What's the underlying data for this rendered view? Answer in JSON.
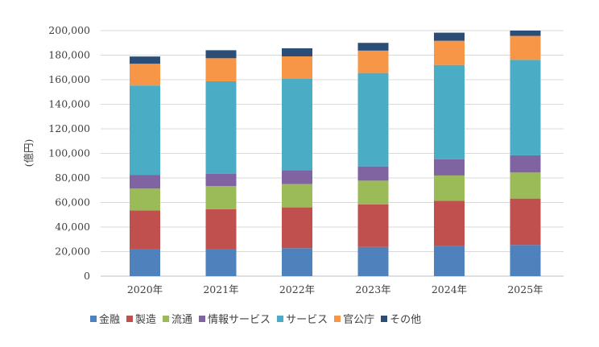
{
  "chart_data": {
    "type": "bar",
    "stacked": true,
    "title": "",
    "xlabel": "",
    "ylabel": "(億円)",
    "ylim": [
      0,
      200000
    ],
    "yticks": [
      "0",
      "20,000",
      "40,000",
      "60,000",
      "80,000",
      "100,000",
      "120,000",
      "140,000",
      "160,000",
      "180,000",
      "200,000"
    ],
    "grid": true,
    "legend_position": "bottom",
    "categories": [
      "2020年",
      "2021年",
      "2022年",
      "2023年",
      "2024年",
      "2025年"
    ],
    "series": [
      {
        "name": "金融",
        "color": "#4f81bd",
        "values": [
          22000,
          22300,
          22800,
          23800,
          24500,
          25400
        ]
      },
      {
        "name": "製造",
        "color": "#c0504d",
        "values": [
          31500,
          32300,
          33200,
          34600,
          36900,
          37800
        ]
      },
      {
        "name": "流通",
        "color": "#9bbb59",
        "values": [
          17800,
          18800,
          19000,
          19400,
          20600,
          21200
        ]
      },
      {
        "name": "情報サービス",
        "color": "#8064a2",
        "values": [
          11000,
          9900,
          11400,
          11600,
          13300,
          14000
        ]
      },
      {
        "name": "サービス",
        "color": "#4bacc6",
        "values": [
          73000,
          75400,
          74500,
          76100,
          76700,
          77800
        ]
      },
      {
        "name": "官公庁",
        "color": "#f79646",
        "values": [
          17700,
          18800,
          18100,
          18200,
          19700,
          19500
        ]
      },
      {
        "name": "その他",
        "color": "#2c4d75",
        "values": [
          5900,
          6500,
          6600,
          6300,
          6600,
          4300
        ]
      }
    ]
  }
}
